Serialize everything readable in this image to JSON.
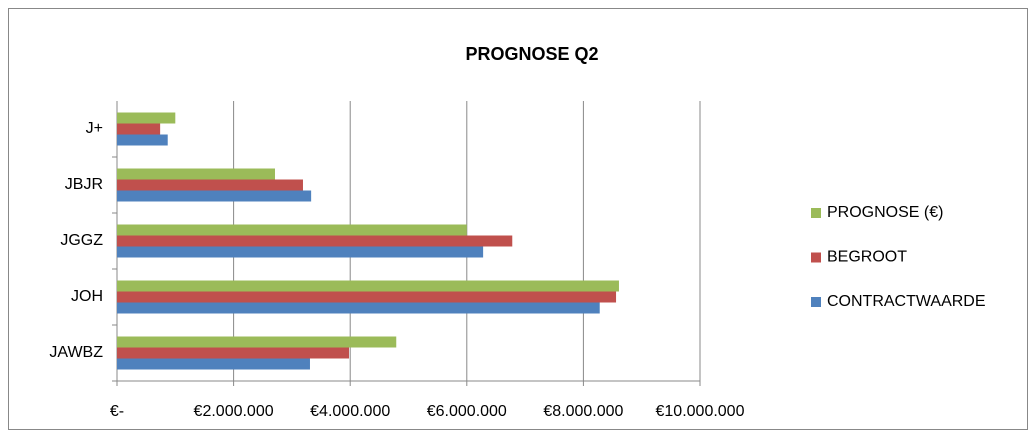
{
  "chart_data": {
    "type": "hbar",
    "title": "PROGNOSE Q2",
    "categories": [
      "JAWBZ",
      "JOH",
      "JGGZ",
      "JBJR",
      "J+"
    ],
    "series": [
      {
        "name": "CONTRACTWAARDE",
        "color": "#4f81bd",
        "values": [
          3310000,
          8280000,
          6280000,
          3330000,
          870000
        ]
      },
      {
        "name": "BEGROOT",
        "color": "#c0504d",
        "values": [
          3980000,
          8560000,
          6780000,
          3190000,
          740000
        ]
      },
      {
        "name": "PROGNOSE (€)",
        "color": "#9bbb59",
        "values": [
          4790000,
          8610000,
          6000000,
          2710000,
          1000000
        ]
      }
    ],
    "xlim": [
      0,
      10000000
    ],
    "xticks": [
      {
        "value": 0,
        "label": "€-"
      },
      {
        "value": 2000000,
        "label": "€2.000.000"
      },
      {
        "value": 4000000,
        "label": "€4.000.000"
      },
      {
        "value": 6000000,
        "label": "€6.000.000"
      },
      {
        "value": 8000000,
        "label": "€8.000.000"
      },
      {
        "value": 10000000,
        "label": "€10.000.000"
      }
    ],
    "grid": true,
    "legend": "right"
  }
}
